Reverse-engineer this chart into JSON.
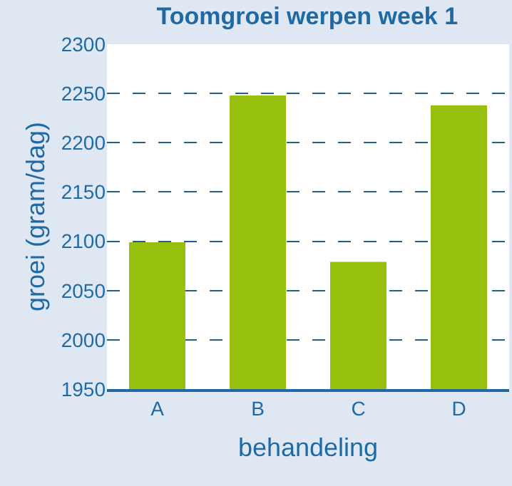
{
  "chart_data": {
    "type": "bar",
    "title": "Toomgroei werpen week 1",
    "xlabel": "behandeling",
    "ylabel": "groei (gram/dag)",
    "categories": [
      "A",
      "B",
      "C",
      "D"
    ],
    "values": [
      2099,
      2248,
      2079,
      2238
    ],
    "color": "#97bf0d",
    "ylim": [
      1950,
      2300
    ],
    "yticks": [
      1950,
      2000,
      2050,
      2100,
      2150,
      2200,
      2250,
      2300
    ],
    "grid": "y"
  }
}
